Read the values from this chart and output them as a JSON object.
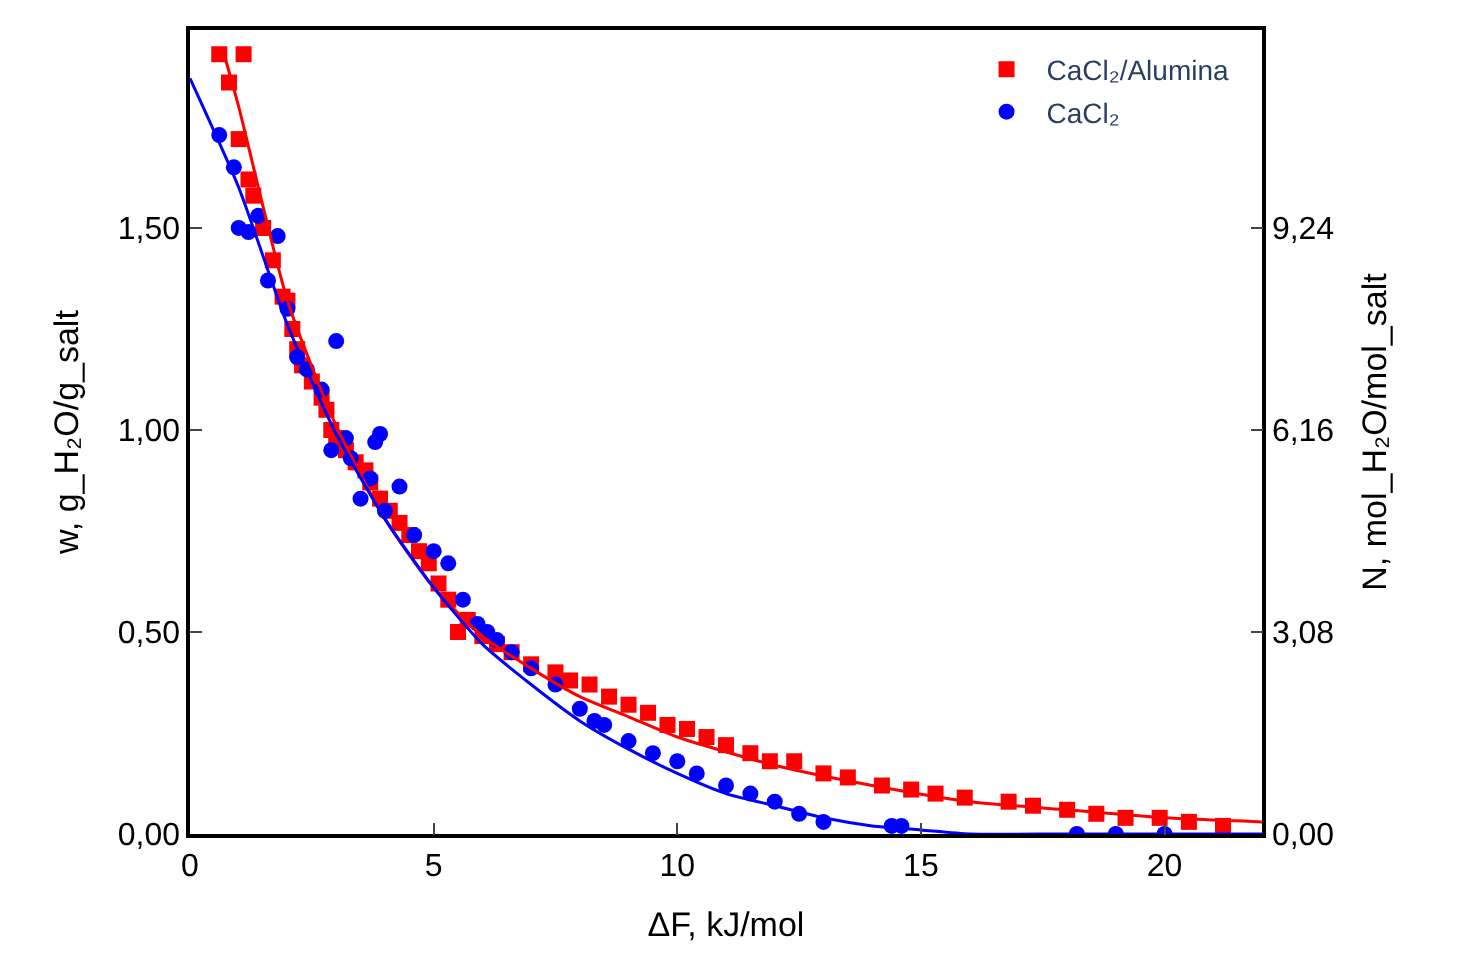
{
  "chart_data": {
    "type": "scatter",
    "xlabel": "ΔF, kJ/mol",
    "ylabel": "w, g_H₂O/g_salt",
    "y2label": "N, mol_H₂O/mol_salt",
    "xlim": [
      0,
      22
    ],
    "xticks": [
      0,
      5,
      10,
      15,
      20
    ],
    "ylim": [
      0,
      1.99
    ],
    "yticks": [
      {
        "value": 0,
        "label": "0,00"
      },
      {
        "value": 0.5,
        "label": "0,50"
      },
      {
        "value": 1,
        "label": "1,00"
      },
      {
        "value": 1.5,
        "label": "1,50"
      }
    ],
    "y2lim": [
      0,
      12.25
    ],
    "y2ticks": [
      {
        "value": 0,
        "label": "0,00"
      },
      {
        "value": 3.08,
        "label": "3,08"
      },
      {
        "value": 6.16,
        "label": "6,16"
      },
      {
        "value": 9.24,
        "label": "9,24"
      }
    ],
    "legend": "top right",
    "series": [
      {
        "name": "CaCl₂/Alumina",
        "color": "#ff0000",
        "marker": "square",
        "x": [
          0.6,
          0.8,
          1.0,
          1.1,
          1.2,
          1.3,
          1.5,
          1.7,
          1.9,
          2.0,
          2.1,
          2.2,
          2.3,
          2.5,
          2.7,
          2.8,
          2.9,
          3.0,
          3.2,
          3.4,
          3.6,
          3.7,
          3.9,
          4.1,
          4.3,
          4.5,
          4.7,
          4.9,
          5.1,
          5.3,
          5.5,
          5.7,
          6.0,
          6.3,
          6.6,
          7.0,
          7.5,
          7.8,
          8.2,
          8.6,
          9.0,
          9.4,
          9.8,
          10.2,
          10.6,
          11.0,
          11.5,
          11.9,
          12.4,
          13.0,
          13.5,
          14.2,
          14.8,
          15.3,
          15.9,
          16.8,
          17.3,
          18.0,
          18.6,
          19.2,
          19.9,
          20.5,
          21.2
        ],
        "values": [
          1.93,
          1.86,
          1.72,
          1.93,
          1.62,
          1.58,
          1.5,
          1.42,
          1.33,
          1.32,
          1.25,
          1.2,
          1.16,
          1.12,
          1.08,
          1.05,
          1.0,
          0.98,
          0.95,
          0.92,
          0.9,
          0.87,
          0.83,
          0.8,
          0.77,
          0.74,
          0.7,
          0.67,
          0.62,
          0.58,
          0.5,
          0.53,
          0.49,
          0.47,
          0.45,
          0.42,
          0.4,
          0.38,
          0.37,
          0.34,
          0.32,
          0.3,
          0.27,
          0.26,
          0.24,
          0.22,
          0.2,
          0.18,
          0.18,
          0.15,
          0.14,
          0.12,
          0.11,
          0.1,
          0.09,
          0.08,
          0.07,
          0.06,
          0.05,
          0.04,
          0.04,
          0.03,
          0.02
        ]
      },
      {
        "name": "CaCl₂",
        "color": "#0000ff",
        "marker": "circle",
        "x": [
          0.6,
          0.9,
          1.0,
          1.2,
          1.4,
          1.6,
          1.8,
          2.0,
          2.2,
          2.4,
          2.7,
          2.9,
          3.0,
          3.2,
          3.3,
          3.5,
          3.7,
          3.8,
          3.9,
          4.0,
          4.3,
          4.6,
          5.0,
          5.3,
          5.6,
          5.9,
          6.1,
          6.3,
          6.6,
          7.0,
          7.5,
          8.0,
          8.3,
          8.5,
          9.0,
          9.5,
          10.0,
          10.4,
          11.0,
          11.5,
          12.0,
          12.5,
          13.0,
          14.4,
          14.6,
          18.2,
          19.0,
          20.0
        ],
        "values": [
          1.73,
          1.65,
          1.5,
          1.49,
          1.53,
          1.37,
          1.48,
          1.3,
          1.18,
          1.15,
          1.1,
          0.95,
          1.22,
          0.98,
          0.93,
          0.83,
          0.88,
          0.97,
          0.99,
          0.8,
          0.86,
          0.74,
          0.7,
          0.67,
          0.58,
          0.52,
          0.5,
          0.48,
          0.45,
          0.41,
          0.37,
          0.31,
          0.28,
          0.27,
          0.23,
          0.2,
          0.18,
          0.15,
          0.12,
          0.1,
          0.08,
          0.05,
          0.03,
          0.02,
          0.02,
          0.0,
          0.0,
          0.0
        ]
      },
      {
        "type": "line",
        "color": "#ff0000",
        "x": [
          0.7,
          1,
          2,
          3,
          4,
          5,
          6,
          7,
          8,
          9,
          10,
          12,
          14,
          16,
          18,
          20,
          22
        ],
        "values": [
          1.93,
          1.8,
          1.32,
          1.01,
          0.78,
          0.61,
          0.49,
          0.41,
          0.34,
          0.29,
          0.24,
          0.17,
          0.12,
          0.08,
          0.06,
          0.04,
          0.03
        ]
      },
      {
        "type": "line",
        "color": "#0000ff",
        "x": [
          0,
          1,
          2,
          3,
          4,
          5,
          6,
          7,
          8,
          9,
          10,
          11,
          12,
          13,
          14,
          15,
          16,
          18,
          22
        ],
        "values": [
          1.87,
          1.6,
          1.26,
          0.99,
          0.78,
          0.61,
          0.47,
          0.37,
          0.28,
          0.21,
          0.15,
          0.1,
          0.07,
          0.04,
          0.02,
          0.01,
          0.0,
          0.0,
          0.0
        ]
      }
    ]
  }
}
